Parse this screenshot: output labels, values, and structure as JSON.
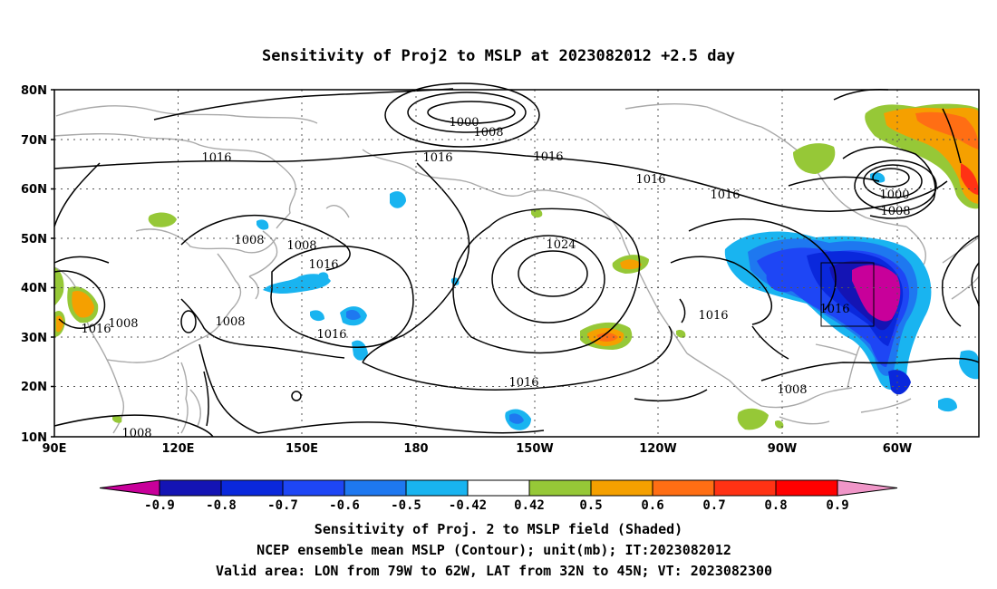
{
  "title": "Sensitivity of Proj2 to MSLP at 2023082012 +2.5 day",
  "map": {
    "lat_ticks": [
      "80N",
      "70N",
      "60N",
      "50N",
      "40N",
      "30N",
      "20N",
      "10N"
    ],
    "lon_ticks": [
      "90E",
      "120E",
      "150E",
      "180",
      "150W",
      "120W",
      "90W",
      "60W"
    ],
    "contour_labels": [
      "1000",
      "1008",
      "1016",
      "1016",
      "1016",
      "1016",
      "1008",
      "1008",
      "1016",
      "1024",
      "1016",
      "1016",
      "1000",
      "1008",
      "1008",
      "1016",
      "1016",
      "1008",
      "1016",
      "1008",
      "1016",
      "1008"
    ],
    "valid_area": {
      "lon": [
        "79W",
        "62W"
      ],
      "lat": [
        "32N",
        "45N"
      ]
    }
  },
  "colorbar": {
    "labels": [
      "-0.9",
      "-0.8",
      "-0.7",
      "-0.6",
      "-0.5",
      "-0.42",
      "0.42",
      "0.5",
      "0.6",
      "0.7",
      "0.8",
      "0.9"
    ],
    "colors": [
      "#c8009a",
      "#1414b4",
      "#0a28dc",
      "#1e46f5",
      "#1e78f0",
      "#19b4f0",
      "#ffffff",
      "#96c837",
      "#f5a000",
      "#ff6e14",
      "#ff3214",
      "#ff0000",
      "#f096c8"
    ]
  },
  "captions": [
    "Sensitivity of Proj. 2 to MSLP field (Shaded)",
    "NCEP ensemble mean MSLP (Contour); unit(mb); IT:2023082012",
    "Valid area: LON from 79W to 62W, LAT from 32N to 45N; VT: 2023082300"
  ]
}
